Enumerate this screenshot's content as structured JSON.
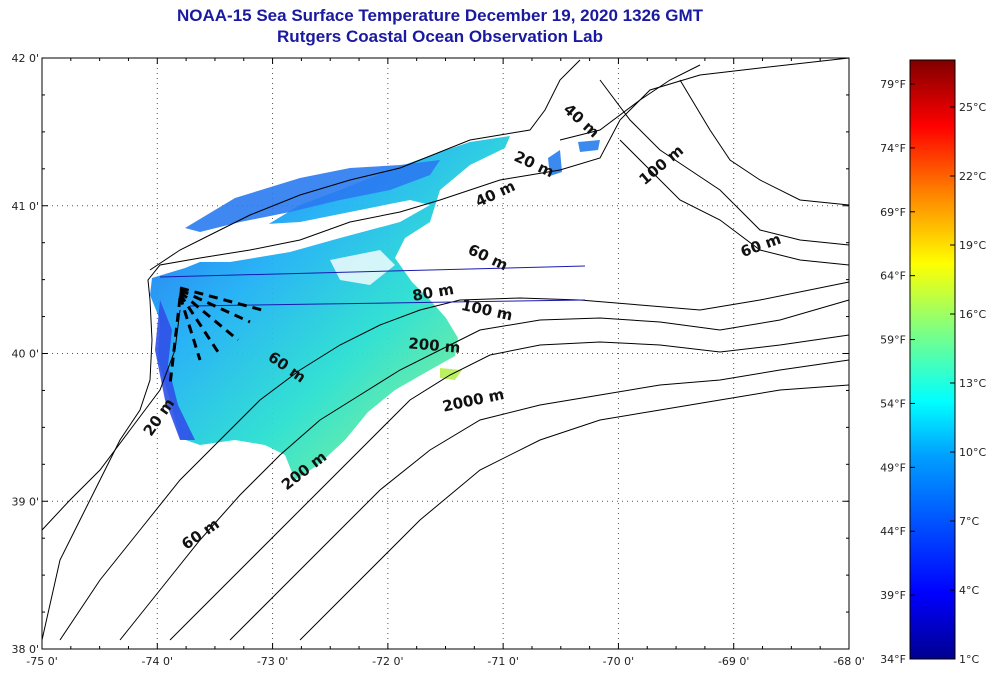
{
  "title": {
    "line1": "NOAA-15 Sea Surface Temperature December 19, 2020 1326 GMT",
    "line2": "Rutgers Coastal Ocean Observation Lab"
  },
  "map": {
    "lon_range": [
      -75,
      -68
    ],
    "lat_range": [
      38,
      42
    ],
    "lon_ticks": [
      "-75 0'",
      "-74 0'",
      "-73 0'",
      "-72 0'",
      "-71 0'",
      "-70 0'",
      "-69 0'",
      "-68 0'"
    ],
    "lat_ticks": [
      "42 0'",
      "41 0'",
      "40 0'",
      "39 0'",
      "38 0'"
    ],
    "grid": "dotted",
    "contour_labels": [
      {
        "text": "40 m",
        "lon": -70.35,
        "lat": 41.55,
        "angle": 42
      },
      {
        "text": "100 m",
        "lon": -69.6,
        "lat": 41.25,
        "angle": -40
      },
      {
        "text": "20 m",
        "lon": -70.75,
        "lat": 41.25,
        "angle": 25
      },
      {
        "text": "40 m",
        "lon": -71.05,
        "lat": 41.05,
        "angle": -25
      },
      {
        "text": "60 m",
        "lon": -71.15,
        "lat": 40.62,
        "angle": 25
      },
      {
        "text": "60 m",
        "lon": -68.75,
        "lat": 40.7,
        "angle": -20
      },
      {
        "text": "80 m",
        "lon": -71.6,
        "lat": 40.38,
        "angle": -10
      },
      {
        "text": "100 m",
        "lon": -71.15,
        "lat": 40.26,
        "angle": 12
      },
      {
        "text": "200 m",
        "lon": -71.6,
        "lat": 40.02,
        "angle": 5
      },
      {
        "text": "2000 m",
        "lon": -71.25,
        "lat": 39.65,
        "angle": -12
      },
      {
        "text": "60 m",
        "lon": -72.9,
        "lat": 39.88,
        "angle": 35
      },
      {
        "text": "200 m",
        "lon": -72.7,
        "lat": 39.18,
        "angle": -38
      },
      {
        "text": "20 m",
        "lon": -73.95,
        "lat": 39.55,
        "angle": -55
      },
      {
        "text": "60 m",
        "lon": -73.6,
        "lat": 38.75,
        "angle": -35
      }
    ]
  },
  "colorbar": {
    "f_labels": [
      "79°F",
      "74°F",
      "69°F",
      "64°F",
      "59°F",
      "54°F",
      "49°F",
      "44°F",
      "39°F",
      "34°F"
    ],
    "c_labels": [
      "25°C",
      "22°C",
      "19°C",
      "16°C",
      "13°C",
      "10°C",
      "7°C",
      "4°C",
      "1°C"
    ],
    "colormap": "jet",
    "colors": [
      "#00008f",
      "#0000ff",
      "#00a0ff",
      "#00ffff",
      "#80ff80",
      "#ffff00",
      "#ff8000",
      "#ff0000",
      "#800000"
    ]
  }
}
